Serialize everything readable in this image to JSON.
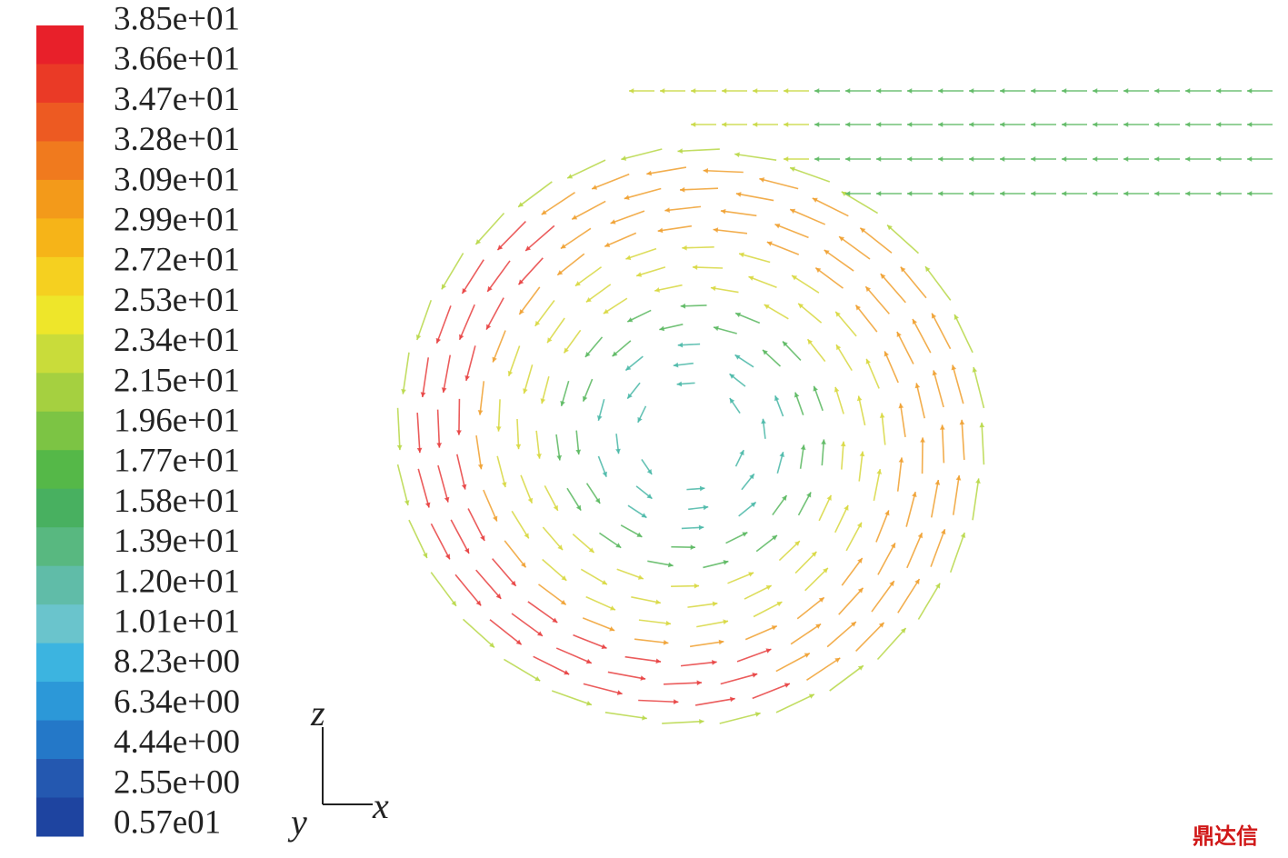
{
  "legend": {
    "labels": [
      "3.85e+01",
      "3.66e+01",
      "3.47e+01",
      "3.28e+01",
      "3.09e+01",
      "2.99e+01",
      "2.72e+01",
      "2.53e+01",
      "2.34e+01",
      "2.15e+01",
      "1.96e+01",
      "1.77e+01",
      "1.58e+01",
      "1.39e+01",
      "1.20e+01",
      "1.01e+01",
      "8.23e+00",
      "6.34e+00",
      "4.44e+00",
      "2.55e+00",
      "0.57e01"
    ],
    "colors": [
      "#e8202a",
      "#ea3a26",
      "#ed5a22",
      "#f07a1e",
      "#f39a1a",
      "#f6b418",
      "#f5d020",
      "#eee62a",
      "#c9dc3a",
      "#a5d040",
      "#7cc444",
      "#55b848",
      "#48b060",
      "#58b880",
      "#60bca8",
      "#6ac4cc",
      "#3cb4e0",
      "#2c98d8",
      "#2478c8",
      "#2458b0",
      "#1e44a0"
    ]
  },
  "axes": {
    "z": "z",
    "x": "x",
    "y": "y"
  },
  "watermark": "鼎达信"
}
